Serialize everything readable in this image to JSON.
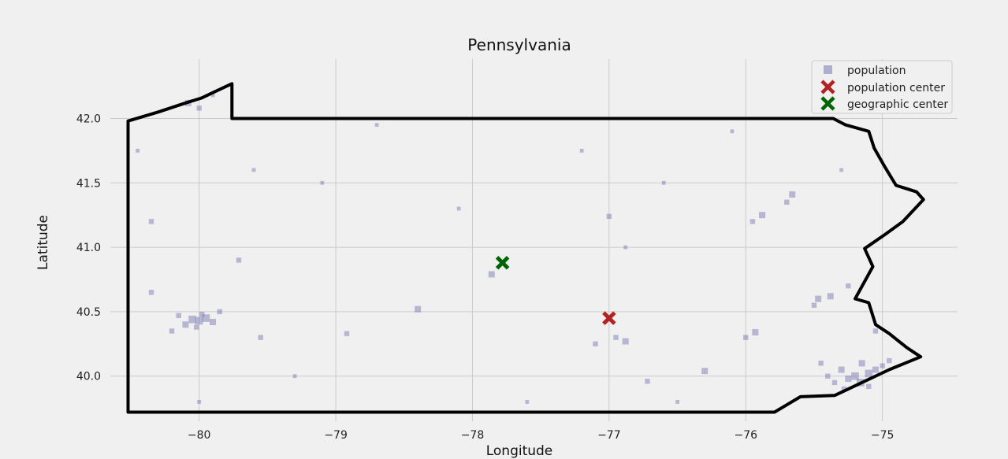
{
  "chart_data": {
    "type": "scatter",
    "title": "Pennsylvania",
    "xlabel": "Longitude",
    "ylabel": "Latitude",
    "xlim": [
      -80.65,
      -74.45
    ],
    "ylim": [
      39.65,
      42.4
    ],
    "xticks": [
      -80,
      -79,
      -78,
      -77,
      -76,
      -75
    ],
    "xtick_labels": [
      "−80",
      "−79",
      "−78",
      "−77",
      "−76",
      "−75"
    ],
    "yticks": [
      40.0,
      40.5,
      41.0,
      41.5,
      42.0
    ],
    "ytick_labels": [
      "40.0",
      "40.5",
      "41.0",
      "41.5",
      "42.0"
    ],
    "grid": true,
    "legend_position": "top-right",
    "colors": {
      "background": "#f0f0f0",
      "grid": "#cbcbcb",
      "population": "#4b4a9a",
      "population_center": "#b22222",
      "geographic_center": "#006400",
      "border": "#000000"
    },
    "legend": [
      {
        "label": "population",
        "marker": "square",
        "color": "#4b4a9a"
      },
      {
        "label": "population center",
        "marker": "x",
        "color": "#b22222"
      },
      {
        "label": "geographic center",
        "marker": "x",
        "color": "#006400"
      }
    ],
    "series": [
      {
        "name": "population",
        "marker": "square",
        "note": "semi-transparent squares, size proportional to population",
        "points": [
          [
            -80.05,
            40.44,
            3
          ],
          [
            -80.0,
            40.43,
            3
          ],
          [
            -79.95,
            40.45,
            3
          ],
          [
            -80.1,
            40.4,
            2.5
          ],
          [
            -79.9,
            40.42,
            2.5
          ],
          [
            -80.02,
            40.38,
            2
          ],
          [
            -79.98,
            40.48,
            2
          ],
          [
            -80.15,
            40.47,
            2
          ],
          [
            -79.85,
            40.5,
            2
          ],
          [
            -80.2,
            40.35,
            2
          ],
          [
            -80.08,
            42.12,
            2.5
          ],
          [
            -80.0,
            42.08,
            2
          ],
          [
            -79.9,
            42.18,
            1.5
          ],
          [
            -75.16,
            39.95,
            3
          ],
          [
            -75.2,
            40.0,
            3
          ],
          [
            -75.1,
            40.02,
            3
          ],
          [
            -75.25,
            39.98,
            2.5
          ],
          [
            -75.05,
            40.05,
            2.5
          ],
          [
            -75.3,
            40.05,
            2.5
          ],
          [
            -75.35,
            39.95,
            2
          ],
          [
            -75.15,
            40.1,
            2.5
          ],
          [
            -75.0,
            40.08,
            2
          ],
          [
            -75.4,
            40.0,
            2
          ],
          [
            -75.28,
            39.9,
            2
          ],
          [
            -75.45,
            40.1,
            2
          ],
          [
            -75.1,
            39.92,
            2
          ],
          [
            -74.95,
            40.12,
            2
          ],
          [
            -75.47,
            40.6,
            2.5
          ],
          [
            -75.38,
            40.62,
            2.5
          ],
          [
            -75.5,
            40.55,
            2
          ],
          [
            -75.25,
            40.7,
            2
          ],
          [
            -75.66,
            41.41,
            2.5
          ],
          [
            -75.88,
            41.25,
            2.5
          ],
          [
            -75.7,
            41.35,
            2
          ],
          [
            -75.95,
            41.2,
            2
          ],
          [
            -76.88,
            40.27,
            2.5
          ],
          [
            -76.95,
            40.3,
            2
          ],
          [
            -76.3,
            40.04,
            2.5
          ],
          [
            -76.72,
            39.96,
            2
          ],
          [
            -75.93,
            40.34,
            2.5
          ],
          [
            -76.0,
            40.3,
            2
          ],
          [
            -77.86,
            40.79,
            2.5
          ],
          [
            -77.0,
            41.24,
            2
          ],
          [
            -78.4,
            40.52,
            2.5
          ],
          [
            -78.92,
            40.33,
            2
          ],
          [
            -79.55,
            40.3,
            2
          ],
          [
            -79.71,
            40.9,
            2
          ],
          [
            -80.35,
            41.2,
            2
          ],
          [
            -80.35,
            40.65,
            2
          ],
          [
            -77.1,
            40.25,
            2
          ],
          [
            -75.05,
            40.35,
            2
          ],
          [
            -76.88,
            41.0,
            1.5
          ],
          [
            -79.1,
            41.5,
            1.5
          ],
          [
            -77.2,
            41.75,
            1.5
          ],
          [
            -76.1,
            41.9,
            1.5
          ],
          [
            -78.7,
            41.95,
            1.5
          ],
          [
            -80.45,
            41.75,
            1.5
          ],
          [
            -80.0,
            39.8,
            1.5
          ],
          [
            -77.6,
            39.8,
            1.5
          ],
          [
            -76.5,
            39.8,
            1.5
          ],
          [
            -79.3,
            40.0,
            1.5
          ],
          [
            -76.6,
            41.5,
            1.5
          ],
          [
            -75.3,
            41.6,
            1.5
          ],
          [
            -78.1,
            41.3,
            1.5
          ],
          [
            -79.6,
            41.6,
            1.5
          ]
        ]
      },
      {
        "name": "population center",
        "marker": "x",
        "points": [
          [
            -77.0,
            40.45
          ]
        ]
      },
      {
        "name": "geographic center",
        "marker": "x",
        "points": [
          [
            -77.78,
            40.88
          ]
        ]
      }
    ],
    "border": [
      [
        -80.52,
        39.72
      ],
      [
        -80.52,
        41.98
      ],
      [
        -80.3,
        42.05
      ],
      [
        -80.1,
        42.12
      ],
      [
        -79.98,
        42.16
      ],
      [
        -79.9,
        42.2
      ],
      [
        -79.76,
        42.27
      ],
      [
        -79.76,
        42.0
      ],
      [
        -78.5,
        42.0
      ],
      [
        -77.0,
        42.0
      ],
      [
        -75.36,
        42.0
      ],
      [
        -75.27,
        41.95
      ],
      [
        -75.1,
        41.9
      ],
      [
        -75.06,
        41.77
      ],
      [
        -74.98,
        41.62
      ],
      [
        -74.9,
        41.48
      ],
      [
        -74.75,
        41.43
      ],
      [
        -74.7,
        41.37
      ],
      [
        -74.85,
        41.2
      ],
      [
        -74.98,
        41.1
      ],
      [
        -75.13,
        40.99
      ],
      [
        -75.07,
        40.85
      ],
      [
        -75.2,
        40.6
      ],
      [
        -75.1,
        40.57
      ],
      [
        -75.05,
        40.4
      ],
      [
        -74.95,
        40.33
      ],
      [
        -74.82,
        40.22
      ],
      [
        -74.72,
        40.15
      ],
      [
        -74.95,
        40.05
      ],
      [
        -75.15,
        39.95
      ],
      [
        -75.35,
        39.85
      ],
      [
        -75.6,
        39.84
      ],
      [
        -75.79,
        39.72
      ],
      [
        -76.5,
        39.72
      ],
      [
        -77.5,
        39.72
      ],
      [
        -78.5,
        39.72
      ],
      [
        -79.5,
        39.72
      ],
      [
        -80.52,
        39.72
      ]
    ]
  }
}
